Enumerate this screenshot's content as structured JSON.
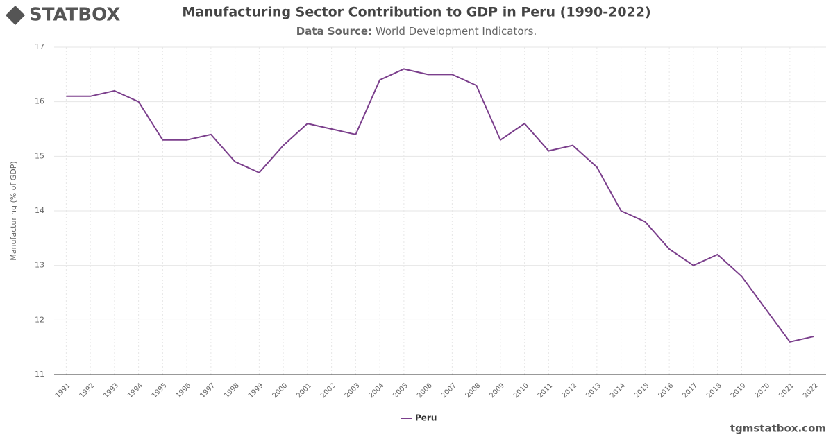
{
  "logo": "STATBOX",
  "footer": "tgmstatbox.com",
  "chart_data": {
    "type": "line",
    "title": "Manufacturing Sector Contribution to GDP in Peru (1990-2022)",
    "subtitle_label": "Data Source:",
    "subtitle": "World Development Indicators.",
    "y_label": "Manufacturing (% of GDP)",
    "categories": [
      "1991",
      "1992",
      "1993",
      "1994",
      "1995",
      "1996",
      "1997",
      "1998",
      "1999",
      "2000",
      "2001",
      "2002",
      "2003",
      "2004",
      "2005",
      "2006",
      "2007",
      "2008",
      "2009",
      "2010",
      "2011",
      "2012",
      "2013",
      "2014",
      "2015",
      "2016",
      "2017",
      "2018",
      "2019",
      "2020",
      "2021",
      "2022"
    ],
    "series": [
      {
        "name": "Peru",
        "color": "#7b3f8c",
        "values": [
          16.1,
          16.1,
          16.2,
          16.0,
          15.3,
          15.3,
          15.4,
          14.9,
          14.7,
          15.2,
          15.6,
          15.5,
          15.4,
          16.4,
          16.6,
          16.5,
          16.5,
          16.3,
          15.3,
          15.6,
          15.1,
          15.2,
          14.8,
          14.0,
          13.8,
          13.3,
          13.0,
          13.2,
          12.8,
          12.2,
          11.6,
          11.7
        ]
      }
    ],
    "ylim": [
      11,
      17
    ],
    "yticks": [
      11,
      12,
      13,
      14,
      15,
      16,
      17
    ],
    "grid": true,
    "legend": "bottom"
  }
}
